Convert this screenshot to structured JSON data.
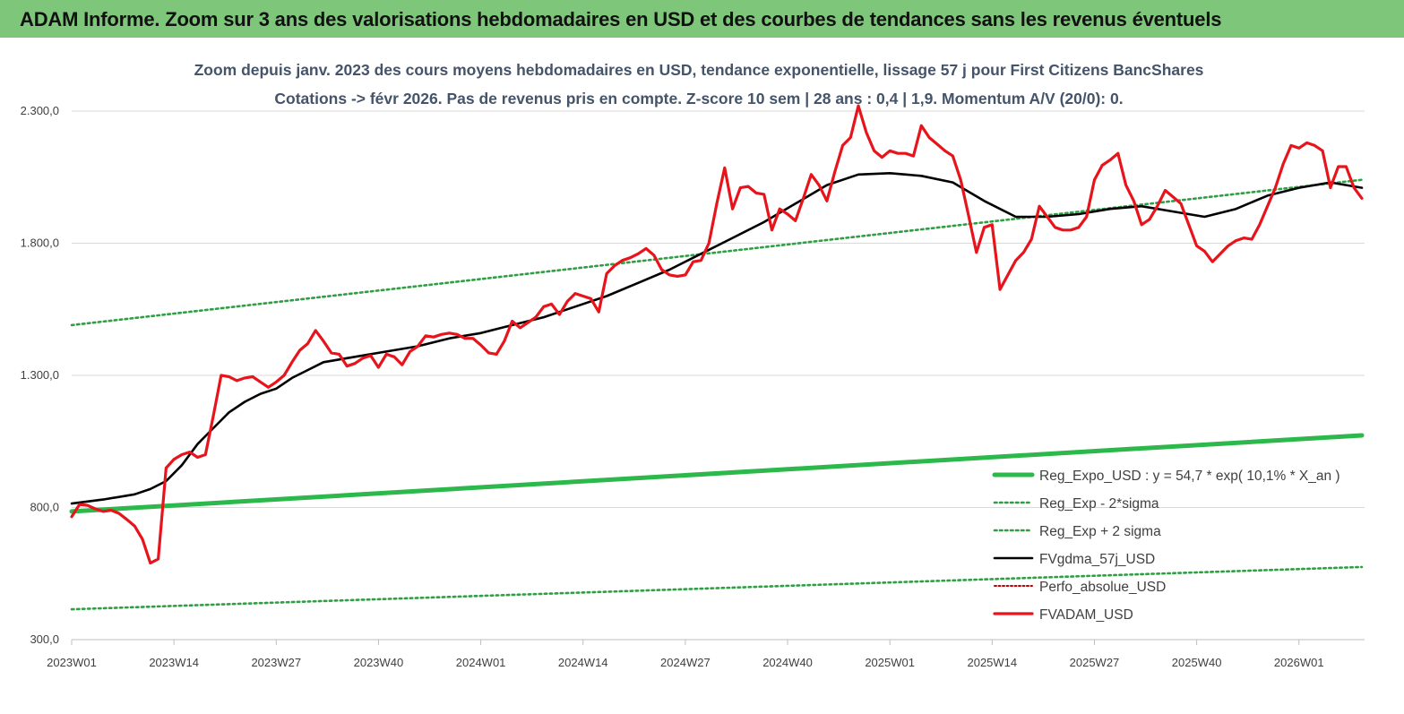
{
  "header": {
    "title": "ADAM Informe. Zoom sur 3 ans des valorisations hebdomadaires en USD et des courbes de tendances sans les revenus éventuels"
  },
  "colors": {
    "banner": "#7ec67a",
    "red": "#e8141c",
    "black": "#000000",
    "green_solid": "#2db84b",
    "green_dotted": "#2f9e44",
    "red_dotted": "#c00000"
  },
  "chart_data": {
    "type": "line",
    "title": "",
    "subtitle_lines": [
      "Zoom depuis janv. 2023 des cours moyens hebdomadaires en USD, tendance exponentielle, lissage 57 j pour First Citizens BancShares",
      "Cotations -> févr 2026. Pas de revenus pris en compte. Z-score 10 sem  |  28 ans : 0,4  |  1,9. Momentum A/V (20/0): 0."
    ],
    "xlabel": "",
    "ylabel": "",
    "ylim": [
      300,
      2300
    ],
    "y_ticks": [
      "300,0",
      "800,0",
      "1.300,0",
      "1.800,0",
      "2.300,0"
    ],
    "y_tick_values": [
      300,
      800,
      1300,
      1800,
      2300
    ],
    "x_ticks": [
      "2023W01",
      "2023W14",
      "2023W27",
      "2023W40",
      "2024W01",
      "2024W14",
      "2024W27",
      "2024W40",
      "2025W01",
      "2025W14",
      "2025W27",
      "2025W40",
      "2026W01"
    ],
    "x_tick_week_index": [
      0,
      13,
      26,
      39,
      52,
      65,
      78,
      91,
      104,
      117,
      130,
      143,
      156
    ],
    "x_last_week_index": 164,
    "grid": "horizontal",
    "legend_position": "bottom-right",
    "legend": [
      {
        "label": "Reg_Expo_USD : y = 54,7 * exp( 10,1% *  X_an )",
        "style": "solid-green"
      },
      {
        "label": "Reg_Exp - 2*sigma",
        "style": "dotted-green"
      },
      {
        "label": "Reg_Exp + 2 sigma",
        "style": "dotted-green"
      },
      {
        "label": "FVgdma_57j_USD",
        "style": "solid-black"
      },
      {
        "label": "Perfo_absolue_USD",
        "style": "dotted-red"
      },
      {
        "label": "FVADAM_USD",
        "style": "solid-red"
      }
    ],
    "series": [
      {
        "name": "FVADAM_USD",
        "points": [
          [
            0,
            765
          ],
          [
            1,
            812
          ],
          [
            2,
            808
          ],
          [
            3,
            795
          ],
          [
            4,
            785
          ],
          [
            5,
            790
          ],
          [
            6,
            778
          ],
          [
            7,
            755
          ],
          [
            8,
            730
          ],
          [
            9,
            680
          ],
          [
            10,
            590
          ],
          [
            11,
            605
          ],
          [
            12,
            950
          ],
          [
            13,
            982
          ],
          [
            14,
            1000
          ],
          [
            15,
            1010
          ],
          [
            16,
            990
          ],
          [
            17,
            1000
          ],
          [
            18,
            1145
          ],
          [
            19,
            1300
          ],
          [
            20,
            1295
          ],
          [
            21,
            1280
          ],
          [
            22,
            1290
          ],
          [
            23,
            1295
          ],
          [
            24,
            1275
          ],
          [
            25,
            1255
          ],
          [
            26,
            1275
          ],
          [
            27,
            1300
          ],
          [
            28,
            1350
          ],
          [
            29,
            1395
          ],
          [
            30,
            1420
          ],
          [
            31,
            1470
          ],
          [
            32,
            1430
          ],
          [
            33,
            1385
          ],
          [
            34,
            1380
          ],
          [
            35,
            1335
          ],
          [
            36,
            1345
          ],
          [
            37,
            1365
          ],
          [
            38,
            1375
          ],
          [
            39,
            1330
          ],
          [
            40,
            1380
          ],
          [
            41,
            1370
          ],
          [
            42,
            1340
          ],
          [
            43,
            1390
          ],
          [
            44,
            1410
          ],
          [
            45,
            1450
          ],
          [
            46,
            1445
          ],
          [
            47,
            1455
          ],
          [
            48,
            1460
          ],
          [
            49,
            1455
          ],
          [
            50,
            1440
          ],
          [
            51,
            1440
          ],
          [
            52,
            1415
          ],
          [
            53,
            1385
          ],
          [
            54,
            1380
          ],
          [
            55,
            1430
          ],
          [
            56,
            1505
          ],
          [
            57,
            1480
          ],
          [
            58,
            1500
          ],
          [
            59,
            1520
          ],
          [
            60,
            1560
          ],
          [
            61,
            1570
          ],
          [
            62,
            1530
          ],
          [
            63,
            1580
          ],
          [
            64,
            1610
          ],
          [
            65,
            1600
          ],
          [
            66,
            1590
          ],
          [
            67,
            1540
          ],
          [
            68,
            1685
          ],
          [
            69,
            1715
          ],
          [
            70,
            1735
          ],
          [
            71,
            1745
          ],
          [
            72,
            1760
          ],
          [
            73,
            1780
          ],
          [
            74,
            1755
          ],
          [
            75,
            1700
          ],
          [
            76,
            1680
          ],
          [
            77,
            1675
          ],
          [
            78,
            1680
          ],
          [
            79,
            1730
          ],
          [
            80,
            1735
          ],
          [
            81,
            1800
          ],
          [
            82,
            1950
          ],
          [
            83,
            2085
          ],
          [
            84,
            1930
          ],
          [
            85,
            2010
          ],
          [
            86,
            2015
          ],
          [
            87,
            1990
          ],
          [
            88,
            1985
          ],
          [
            89,
            1850
          ],
          [
            90,
            1930
          ],
          [
            91,
            1910
          ],
          [
            92,
            1885
          ],
          [
            93,
            1970
          ],
          [
            94,
            2060
          ],
          [
            95,
            2020
          ],
          [
            96,
            1960
          ],
          [
            97,
            2070
          ],
          [
            98,
            2170
          ],
          [
            99,
            2200
          ],
          [
            100,
            2320
          ],
          [
            101,
            2220
          ],
          [
            102,
            2150
          ],
          [
            103,
            2125
          ],
          [
            104,
            2150
          ],
          [
            105,
            2140
          ],
          [
            106,
            2140
          ],
          [
            107,
            2130
          ],
          [
            108,
            2245
          ],
          [
            109,
            2200
          ],
          [
            110,
            2175
          ],
          [
            111,
            2150
          ],
          [
            112,
            2130
          ],
          [
            113,
            2040
          ],
          [
            114,
            1905
          ],
          [
            115,
            1765
          ],
          [
            116,
            1860
          ],
          [
            117,
            1870
          ],
          [
            118,
            1625
          ],
          [
            119,
            1680
          ],
          [
            120,
            1735
          ],
          [
            121,
            1765
          ],
          [
            122,
            1815
          ],
          [
            123,
            1940
          ],
          [
            124,
            1900
          ],
          [
            125,
            1860
          ],
          [
            126,
            1850
          ],
          [
            127,
            1850
          ],
          [
            128,
            1860
          ],
          [
            129,
            1900
          ],
          [
            130,
            2040
          ],
          [
            131,
            2095
          ],
          [
            132,
            2115
          ],
          [
            133,
            2140
          ],
          [
            134,
            2020
          ],
          [
            135,
            1960
          ],
          [
            136,
            1870
          ],
          [
            137,
            1890
          ],
          [
            138,
            1940
          ],
          [
            139,
            2000
          ],
          [
            140,
            1975
          ],
          [
            141,
            1950
          ],
          [
            142,
            1870
          ],
          [
            143,
            1790
          ],
          [
            144,
            1770
          ],
          [
            145,
            1730
          ],
          [
            146,
            1760
          ],
          [
            147,
            1790
          ],
          [
            148,
            1810
          ],
          [
            149,
            1820
          ],
          [
            150,
            1815
          ],
          [
            151,
            1870
          ],
          [
            152,
            1940
          ],
          [
            153,
            2010
          ],
          [
            154,
            2100
          ],
          [
            155,
            2170
          ],
          [
            156,
            2160
          ],
          [
            157,
            2180
          ],
          [
            158,
            2170
          ],
          [
            159,
            2150
          ],
          [
            160,
            2010
          ],
          [
            161,
            2090
          ],
          [
            162,
            2090
          ],
          [
            163,
            2010
          ],
          [
            164,
            1970
          ]
        ]
      },
      {
        "name": "FVgdma_57j_USD",
        "points": [
          [
            0,
            815
          ],
          [
            4,
            830
          ],
          [
            8,
            850
          ],
          [
            10,
            870
          ],
          [
            12,
            900
          ],
          [
            14,
            960
          ],
          [
            16,
            1040
          ],
          [
            18,
            1100
          ],
          [
            20,
            1160
          ],
          [
            22,
            1200
          ],
          [
            24,
            1230
          ],
          [
            26,
            1250
          ],
          [
            28,
            1290
          ],
          [
            30,
            1320
          ],
          [
            32,
            1350
          ],
          [
            34,
            1360
          ],
          [
            36,
            1370
          ],
          [
            40,
            1390
          ],
          [
            44,
            1410
          ],
          [
            48,
            1440
          ],
          [
            52,
            1460
          ],
          [
            56,
            1490
          ],
          [
            60,
            1520
          ],
          [
            64,
            1560
          ],
          [
            68,
            1600
          ],
          [
            72,
            1650
          ],
          [
            76,
            1700
          ],
          [
            80,
            1760
          ],
          [
            84,
            1820
          ],
          [
            88,
            1880
          ],
          [
            92,
            1950
          ],
          [
            96,
            2020
          ],
          [
            100,
            2060
          ],
          [
            104,
            2065
          ],
          [
            108,
            2055
          ],
          [
            112,
            2030
          ],
          [
            116,
            1960
          ],
          [
            120,
            1900
          ],
          [
            124,
            1900
          ],
          [
            128,
            1910
          ],
          [
            132,
            1930
          ],
          [
            136,
            1940
          ],
          [
            140,
            1920
          ],
          [
            144,
            1900
          ],
          [
            148,
            1930
          ],
          [
            152,
            1980
          ],
          [
            156,
            2010
          ],
          [
            160,
            2030
          ],
          [
            164,
            2010
          ]
        ]
      },
      {
        "name": "Reg_Expo_USD : y = 54,7 * exp( 10,1% *  X_an )",
        "points": [
          [
            0,
            785
          ],
          [
            164,
            1073
          ]
        ]
      },
      {
        "name": "Reg_Exp + 2 sigma",
        "points": [
          [
            0,
            1490
          ],
          [
            164,
            2040
          ]
        ]
      },
      {
        "name": "Reg_Exp - 2*sigma",
        "points": [
          [
            0,
            415
          ],
          [
            164,
            575
          ]
        ]
      }
    ]
  }
}
